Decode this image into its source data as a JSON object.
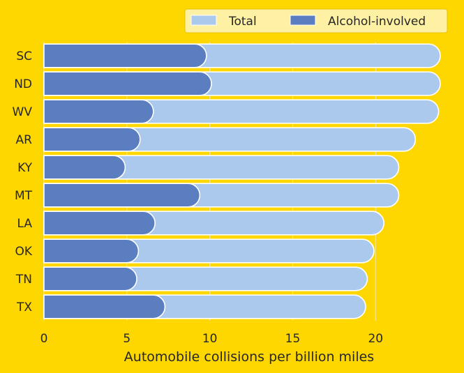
{
  "chart_data": {
    "type": "bar",
    "orientation": "horizontal",
    "categories": [
      "SC",
      "ND",
      "WV",
      "AR",
      "KY",
      "MT",
      "LA",
      "OK",
      "TN",
      "TX"
    ],
    "series": [
      {
        "name": "Total",
        "values": [
          23.9,
          23.9,
          23.8,
          22.4,
          21.4,
          21.4,
          20.5,
          19.9,
          19.5,
          19.4
        ],
        "color": "#ABC9EC"
      },
      {
        "name": "Alcohol-involved",
        "values": [
          9.8,
          10.1,
          6.6,
          5.8,
          4.9,
          9.4,
          6.7,
          5.7,
          5.6,
          7.3
        ],
        "color": "#5B7EC1"
      }
    ],
    "xlabel": "Automobile collisions per billion miles",
    "ylabel": "",
    "title": "",
    "xlim": [
      0,
      24.7
    ],
    "xticks": [
      0,
      5,
      10,
      15,
      20
    ],
    "grid": "vertical",
    "legend_position": "top-right",
    "bar_edge_color": "#FFFFFF",
    "background_color": "#FFD700",
    "gridline_color": "#EBEBEB",
    "text_color": "#262626"
  }
}
